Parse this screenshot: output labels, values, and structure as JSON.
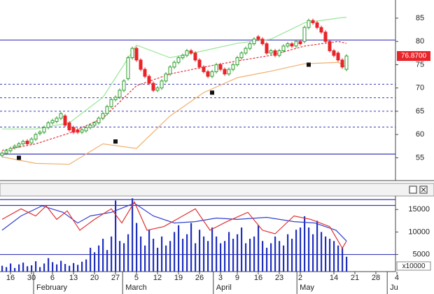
{
  "chart_data": [
    {
      "type": "candlestick",
      "xlim": [
        -0.5,
        93.67
      ],
      "ylim": [
        50.1,
        88.9
      ],
      "yticks": [
        55,
        60,
        65,
        70,
        75,
        80,
        85
      ],
      "up_color": "#2e9e2e",
      "down_color": "#e8242a",
      "last_label": "76.8700",
      "x": [
        0,
        1,
        2,
        3,
        4,
        5,
        6,
        7,
        8,
        9,
        10,
        11,
        12,
        13,
        14,
        15,
        16,
        17,
        18,
        19,
        20,
        21,
        22,
        23,
        24,
        25,
        26,
        27,
        28,
        29,
        30,
        31,
        32,
        33,
        34,
        35,
        36,
        37,
        38,
        39,
        40,
        41,
        42,
        43,
        44,
        45,
        46,
        47,
        48,
        49,
        50,
        51,
        52,
        53,
        54,
        55,
        56,
        57,
        58,
        59,
        60,
        61,
        62,
        63,
        64,
        65,
        66,
        67,
        68,
        69,
        70,
        71,
        72,
        73,
        74,
        75,
        76,
        77,
        78,
        79,
        80,
        81,
        82
      ],
      "open": [
        55.5,
        56,
        56.5,
        57.2,
        57.5,
        58,
        58.6,
        58.2,
        59,
        60.2,
        60.5,
        61.5,
        62.5,
        62.8,
        63.5,
        64,
        62.5,
        61.5,
        61,
        60.5,
        60.8,
        61.5,
        62,
        62.5,
        63.5,
        64.5,
        66,
        67.5,
        68,
        69.5,
        72,
        76.5,
        78.5,
        76,
        74,
        72.5,
        71,
        69.5,
        70,
        71.5,
        73,
        74.5,
        75.5,
        76.5,
        77,
        78,
        77.5,
        76,
        74.5,
        73.5,
        72.5,
        73.5,
        75,
        74,
        73,
        74,
        75,
        76.5,
        77.5,
        78.5,
        79.5,
        81,
        80.5,
        79.5,
        77.5,
        78,
        77,
        78,
        79,
        79.5,
        79,
        80,
        80,
        83,
        84.5,
        84,
        83,
        82,
        80,
        78,
        77.5,
        76,
        74
      ],
      "high": [
        56.4,
        56.9,
        57.4,
        57.9,
        58.4,
        58.9,
        59.0,
        59.4,
        60.4,
        60.9,
        61.9,
        62.9,
        63.4,
        63.9,
        64.9,
        64.4,
        62.9,
        61.9,
        61.4,
        61.4,
        61.9,
        62.4,
        62.9,
        63.9,
        64.9,
        66.4,
        67.9,
        68.4,
        69.9,
        71.9,
        76.9,
        78.9,
        78.9,
        76.4,
        74.4,
        72.9,
        71.4,
        70.4,
        71.9,
        73.4,
        74.9,
        75.9,
        76.9,
        77.4,
        78.4,
        78.4,
        77.9,
        76.4,
        74.9,
        73.9,
        73.9,
        75.4,
        75.4,
        74.4,
        74.4,
        75.4,
        76.9,
        77.9,
        78.9,
        79.9,
        80.9,
        81.4,
        80.9,
        79.9,
        78.4,
        78.4,
        78.4,
        79.4,
        79.9,
        79.9,
        80.4,
        80.4,
        83.4,
        84.9,
        84.9,
        84.4,
        83.4,
        82.4,
        80.4,
        78.4,
        77.9,
        76.4,
        77.27
      ],
      "low": [
        55.1,
        55.6,
        56.1,
        56.8,
        57.1,
        57.6,
        57.6,
        57.8,
        58.6,
        59.8,
        60.1,
        61.1,
        62.1,
        62.4,
        63.1,
        61.6,
        60.6,
        60.1,
        60.1,
        60.1,
        60.4,
        61.1,
        61.6,
        62.1,
        63.1,
        64.1,
        65.6,
        67.1,
        67.6,
        69.1,
        71.6,
        76.1,
        75.6,
        73.6,
        72.1,
        70.6,
        69.1,
        69.1,
        69.6,
        71.1,
        72.6,
        74.1,
        75.1,
        76.1,
        76.6,
        77.1,
        75.6,
        74.1,
        73.1,
        72.1,
        72.1,
        73.1,
        73.6,
        72.6,
        72.6,
        73.6,
        74.6,
        76.1,
        77.1,
        78.1,
        79.1,
        80.1,
        79.1,
        77.1,
        77.1,
        76.6,
        76.6,
        77.6,
        78.6,
        78.6,
        78.6,
        79.1,
        79.6,
        82.6,
        83.6,
        82.6,
        81.6,
        79.6,
        77.6,
        76.6,
        75.6,
        74.1,
        73.6
      ],
      "close": [
        56,
        56.5,
        57,
        57.5,
        58,
        58.5,
        58,
        59,
        60,
        60.5,
        61.5,
        62.5,
        63,
        63.5,
        64.5,
        62,
        61,
        60.5,
        60.5,
        61,
        61.5,
        62,
        62.5,
        63.5,
        64.5,
        66,
        67.5,
        68,
        69.5,
        71.5,
        76.5,
        78.5,
        76,
        74,
        72.5,
        71,
        69.5,
        70,
        71.5,
        73,
        74.5,
        75.5,
        76.5,
        77,
        78,
        77.5,
        76,
        74.5,
        73.5,
        72.5,
        73.5,
        75,
        74,
        73,
        74,
        75,
        76.5,
        77.5,
        78.5,
        79.5,
        80.5,
        80.5,
        79.5,
        77.5,
        78,
        77,
        78,
        79,
        79.5,
        79,
        80,
        79.5,
        83,
        84.5,
        84,
        83,
        82,
        80,
        78,
        77,
        76,
        74.5,
        76.87
      ],
      "series": [
        {
          "color": "#98e698",
          "dashed": false,
          "x": [
            0,
            8,
            16,
            24,
            32,
            40,
            48,
            56,
            64,
            72,
            80,
            82
          ],
          "values": [
            61.2,
            61.2,
            62.5,
            68,
            79.2,
            76.5,
            78,
            79.6,
            80.5,
            84,
            85,
            85.2
          ]
        },
        {
          "color": "#e0303a",
          "dashed": true,
          "x": [
            0,
            8,
            16,
            24,
            32,
            40,
            48,
            56,
            64,
            72,
            80,
            82
          ],
          "values": [
            56.6,
            58,
            60.3,
            63.5,
            70.5,
            73,
            74.5,
            75.8,
            77,
            79,
            80,
            79.6
          ]
        },
        {
          "color": "#f0b070",
          "dashed": false,
          "x": [
            0,
            8,
            16,
            24,
            32,
            40,
            48,
            56,
            64,
            72,
            80,
            82
          ],
          "values": [
            55.2,
            53.8,
            53.6,
            58,
            57,
            64,
            69,
            72.2,
            73.6,
            75.2,
            75.5,
            74.5
          ]
        }
      ],
      "markers": {
        "color": "#111111",
        "x": [
          4,
          27,
          50,
          73
        ],
        "values": [
          55,
          58.5,
          69,
          75
        ]
      },
      "hlines": {
        "color": "#3a3ab8",
        "solid": [
          80.3,
          55.8
        ],
        "dashed": [
          70.8,
          67.9,
          65.0,
          61.6
        ]
      }
    },
    {
      "type": "bar",
      "xlim": [
        -0.5,
        93.67
      ],
      "ylim": [
        1200,
        18000
      ],
      "yticks": [
        5000,
        10000,
        15000
      ],
      "unit_label": "x10000",
      "color": "#1f2fbf",
      "x": [
        0,
        1,
        2,
        3,
        4,
        5,
        6,
        7,
        8,
        9,
        10,
        11,
        12,
        13,
        14,
        15,
        16,
        17,
        18,
        19,
        20,
        21,
        22,
        23,
        24,
        25,
        26,
        27,
        28,
        29,
        30,
        31,
        32,
        33,
        34,
        35,
        36,
        37,
        38,
        39,
        40,
        41,
        42,
        43,
        44,
        45,
        46,
        47,
        48,
        49,
        50,
        51,
        52,
        53,
        54,
        55,
        56,
        57,
        58,
        59,
        60,
        61,
        62,
        63,
        64,
        65,
        66,
        67,
        68,
        69,
        70,
        71,
        72,
        73,
        74,
        75,
        76,
        77,
        78,
        79,
        80,
        81,
        82
      ],
      "values": [
        2500,
        2200,
        3000,
        2000,
        2800,
        3200,
        2400,
        2600,
        3500,
        2200,
        3000,
        4200,
        3300,
        2800,
        3600,
        2900,
        2500,
        3100,
        2700,
        3400,
        3900,
        6500,
        5500,
        7000,
        8500,
        6000,
        9000,
        17000,
        8000,
        7500,
        9500,
        17500,
        12000,
        9000,
        7000,
        10500,
        8500,
        6500,
        9000,
        7000,
        8000,
        10000,
        11500,
        8500,
        9500,
        12000,
        7500,
        10500,
        9000,
        8000,
        11000,
        9000,
        7500,
        8000,
        10000,
        8500,
        9500,
        11000,
        7500,
        8500,
        9000,
        11500,
        8000,
        6500,
        7500,
        9000,
        8000,
        7000,
        9500,
        8500,
        10500,
        11000,
        13500,
        11000,
        9500,
        12500,
        10000,
        9000,
        8500,
        8000,
        7000,
        6500,
        4500
      ],
      "series": [
        {
          "color": "#3040d0",
          "x": [
            0,
            4.5,
            9.5,
            14.5,
            18,
            21,
            26,
            31.5,
            36,
            41,
            46,
            51,
            56,
            63,
            69.5,
            74.5,
            79.5,
            82
          ],
          "values": [
            10400,
            13570,
            15800,
            14370,
            12000,
            13570,
            14370,
            16400,
            13570,
            12000,
            12300,
            13100,
            12800,
            13250,
            12300,
            12000,
            10400,
            8000
          ]
        },
        {
          "color": "#e03030",
          "x": [
            0,
            4.5,
            8,
            10.5,
            13,
            15.5,
            18.5,
            22,
            26,
            28.5,
            31.5,
            34.5,
            38.5,
            43,
            46,
            49.5,
            53.5,
            58.5,
            62,
            65,
            69.5,
            73.5,
            78,
            81,
            82
          ],
          "values": [
            12800,
            15150,
            13570,
            15800,
            12800,
            14700,
            10400,
            12800,
            15150,
            12000,
            16700,
            10400,
            11200,
            13570,
            15150,
            10400,
            12300,
            14370,
            10400,
            9600,
            13570,
            12800,
            11200,
            6400,
            8000
          ]
        }
      ],
      "hlines": {
        "color": "#3a3ab8",
        "solid": [
          17200,
          15900,
          5000
        ]
      },
      "xticks": [
        {
          "value": 2,
          "label": "16"
        },
        {
          "value": 7,
          "label": "30"
        },
        {
          "value": 12,
          "label": "6"
        },
        {
          "value": 17,
          "label": "13"
        },
        {
          "value": 22,
          "label": "20"
        },
        {
          "value": 27,
          "label": "27"
        },
        {
          "value": 32,
          "label": "5"
        },
        {
          "value": 37,
          "label": "12"
        },
        {
          "value": 42,
          "label": "19"
        },
        {
          "value": 47,
          "label": "26"
        },
        {
          "value": 52,
          "label": "3"
        },
        {
          "value": 56,
          "label": "9"
        },
        {
          "value": 61,
          "label": "16"
        },
        {
          "value": 66,
          "label": "23"
        },
        {
          "value": 71,
          "label": "2"
        },
        {
          "value": 79,
          "label": "14"
        },
        {
          "value": 84,
          "label": "21"
        },
        {
          "value": 89,
          "label": "28"
        },
        {
          "value": 94,
          "label": "4"
        }
      ],
      "month_ticks": [
        {
          "value": 7.5,
          "label": "February"
        },
        {
          "value": 28.7,
          "label": "March"
        },
        {
          "value": 50.3,
          "label": "April"
        },
        {
          "value": 70.2,
          "label": "May"
        },
        {
          "value": 91.7,
          "label": "Ju"
        }
      ]
    }
  ]
}
